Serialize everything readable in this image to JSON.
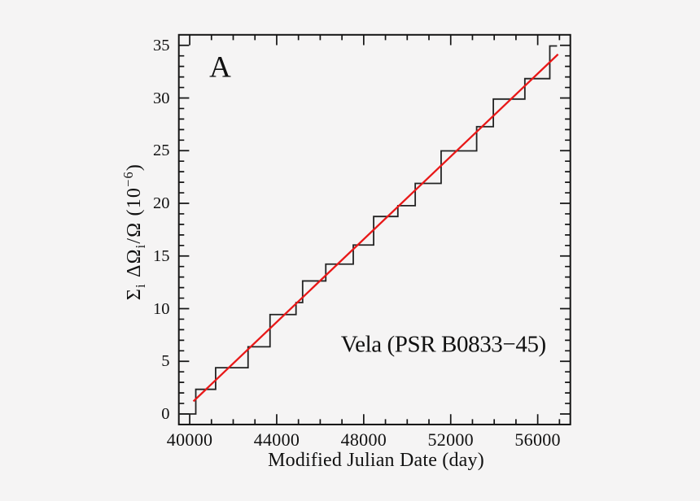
{
  "colors": {
    "background": "#f5f4f4",
    "frame": "#141414",
    "tick": "#141414",
    "text": "#111111",
    "step_line": "#232323",
    "fit_line": "#e81818"
  },
  "chart_data": {
    "type": "line",
    "subtype": "cumulative-step-histogram-with-linear-fit",
    "panel_label": "A",
    "annotation": "Vela (PSR B0833−45)",
    "xlabel": "Modified Julian Date (day)",
    "ylabel": "Σᵢ ΔΩᵢ/Ω (10⁻⁶)",
    "ylabel_parts": [
      {
        "t": "Σ",
        "v": "n"
      },
      {
        "t": "i",
        "v": "sub"
      },
      {
        "t": " ΔΩ",
        "v": "n"
      },
      {
        "t": "i",
        "v": "sub"
      },
      {
        "t": "/Ω (10",
        "v": "n"
      },
      {
        "t": "−6",
        "v": "sup"
      },
      {
        "t": ")",
        "v": "n"
      }
    ],
    "xlim": [
      39500,
      57500
    ],
    "ylim": [
      -1,
      36
    ],
    "grid": false,
    "legend": null,
    "x_major_ticks": [
      40000,
      44000,
      48000,
      52000,
      56000
    ],
    "x_tick_labels": [
      "40000",
      "44000",
      "48000",
      "52000",
      "56000"
    ],
    "x_minor_step": 1000,
    "y_major_ticks": [
      0,
      5,
      10,
      15,
      20,
      25,
      30,
      35
    ],
    "y_tick_labels": [
      "0",
      "5",
      "10",
      "15",
      "20",
      "25",
      "30",
      "35"
    ],
    "y_minor_step": 1,
    "series": [
      {
        "name": "cumulative-glitch-steps",
        "style": "step",
        "start": [
          39500,
          0
        ],
        "events": [
          [
            40280,
            2.34
          ],
          [
            41192,
            4.39
          ],
          [
            42683,
            6.38
          ],
          [
            43693,
            9.44
          ],
          [
            44888,
            10.58
          ],
          [
            45192,
            12.63
          ],
          [
            46257,
            14.23
          ],
          [
            47520,
            16.04
          ],
          [
            48457,
            18.75
          ],
          [
            49570,
            19.78
          ],
          [
            50369,
            21.89
          ],
          [
            51559,
            24.98
          ],
          [
            53193,
            27.28
          ],
          [
            53960,
            29.9
          ],
          [
            55409,
            31.84
          ],
          [
            56556,
            34.94
          ]
        ],
        "end_x": 56890
      },
      {
        "name": "linear-fit",
        "style": "straight",
        "points": [
          [
            40170,
            1.2
          ],
          [
            56935,
            34.15
          ]
        ]
      }
    ]
  }
}
